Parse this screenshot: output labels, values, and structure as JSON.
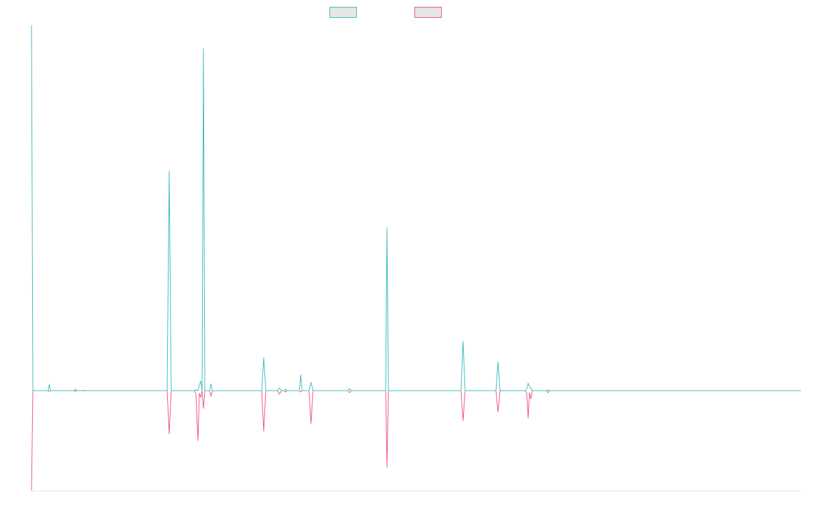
{
  "chart_data": {
    "type": "line",
    "title": "",
    "xlabel": "",
    "ylabel": "",
    "grid": false,
    "legend": {
      "placement": "top-center"
    },
    "x_range": [
      0,
      1123
    ],
    "y_range": [
      -146,
      533
    ],
    "baseline": 0,
    "series": [
      {
        "color": "#3dbdbd",
        "fill": "#e6e6e6",
        "points": [
          [
            0,
            533
          ],
          [
            2,
            0
          ],
          [
            24,
            0
          ],
          [
            26,
            9
          ],
          [
            28,
            0
          ],
          [
            62,
            0
          ],
          [
            64,
            2
          ],
          [
            66,
            0
          ],
          [
            75,
            0
          ],
          [
            76,
            0.5
          ],
          [
            78,
            0
          ],
          [
            198,
            0
          ],
          [
            201,
            320
          ],
          [
            204,
            0
          ],
          [
            238,
            0
          ],
          [
            240,
            1
          ],
          [
            243,
            0
          ],
          [
            245,
            8
          ],
          [
            247,
            14
          ],
          [
            249,
            0
          ],
          [
            251,
            499
          ],
          [
            253,
            0
          ],
          [
            260,
            0
          ],
          [
            262,
            10
          ],
          [
            264,
            0
          ],
          [
            336,
            0
          ],
          [
            339,
            48
          ],
          [
            342,
            0
          ],
          [
            359,
            0
          ],
          [
            362,
            4
          ],
          [
            365,
            0
          ],
          [
            369,
            0
          ],
          [
            371,
            2
          ],
          [
            373,
            0
          ],
          [
            391,
            0
          ],
          [
            393,
            23
          ],
          [
            395,
            0
          ],
          [
            405,
            0
          ],
          [
            408,
            12
          ],
          [
            411,
            0
          ],
          [
            462,
            0
          ],
          [
            464,
            3
          ],
          [
            467,
            0
          ],
          [
            517,
            0
          ],
          [
            519,
            238
          ],
          [
            521,
            0
          ],
          [
            627,
            0
          ],
          [
            630,
            72
          ],
          [
            633,
            0
          ],
          [
            678,
            0
          ],
          [
            681,
            42
          ],
          [
            684,
            0
          ],
          [
            721,
            0
          ],
          [
            723,
            3
          ],
          [
            725,
            11
          ],
          [
            727,
            5
          ],
          [
            729,
            4
          ],
          [
            731,
            0
          ],
          [
            752,
            0
          ],
          [
            754,
            1
          ],
          [
            756,
            0
          ],
          [
            1123,
            0
          ]
        ]
      },
      {
        "color": "#f0577f",
        "fill": "#e6e6e6",
        "points": [
          [
            0,
            -146
          ],
          [
            2,
            0
          ],
          [
            24,
            0
          ],
          [
            26,
            -1
          ],
          [
            28,
            0
          ],
          [
            62,
            0
          ],
          [
            64,
            -1
          ],
          [
            66,
            0
          ],
          [
            198,
            0
          ],
          [
            201,
            -63
          ],
          [
            204,
            0
          ],
          [
            238,
            0
          ],
          [
            240,
            -5
          ],
          [
            243,
            -73
          ],
          [
            245,
            -4
          ],
          [
            247,
            -10
          ],
          [
            249,
            0
          ],
          [
            251,
            -26
          ],
          [
            253,
            0
          ],
          [
            260,
            0
          ],
          [
            262,
            -8
          ],
          [
            264,
            0
          ],
          [
            336,
            0
          ],
          [
            339,
            -59
          ],
          [
            342,
            0
          ],
          [
            359,
            0
          ],
          [
            362,
            -5
          ],
          [
            365,
            0
          ],
          [
            369,
            0
          ],
          [
            371,
            -2
          ],
          [
            373,
            0
          ],
          [
            391,
            0
          ],
          [
            393,
            -2
          ],
          [
            395,
            0
          ],
          [
            405,
            0
          ],
          [
            408,
            -48
          ],
          [
            411,
            0
          ],
          [
            462,
            0
          ],
          [
            464,
            -3
          ],
          [
            467,
            0
          ],
          [
            517,
            0
          ],
          [
            519,
            -112
          ],
          [
            521,
            0
          ],
          [
            627,
            0
          ],
          [
            630,
            -44
          ],
          [
            633,
            0
          ],
          [
            678,
            0
          ],
          [
            681,
            -31
          ],
          [
            684,
            0
          ],
          [
            721,
            0
          ],
          [
            723,
            -4
          ],
          [
            725,
            -40
          ],
          [
            727,
            -3
          ],
          [
            729,
            -12
          ],
          [
            731,
            0
          ],
          [
            752,
            0
          ],
          [
            754,
            -3
          ],
          [
            756,
            0
          ],
          [
            1123,
            0
          ]
        ]
      }
    ]
  }
}
